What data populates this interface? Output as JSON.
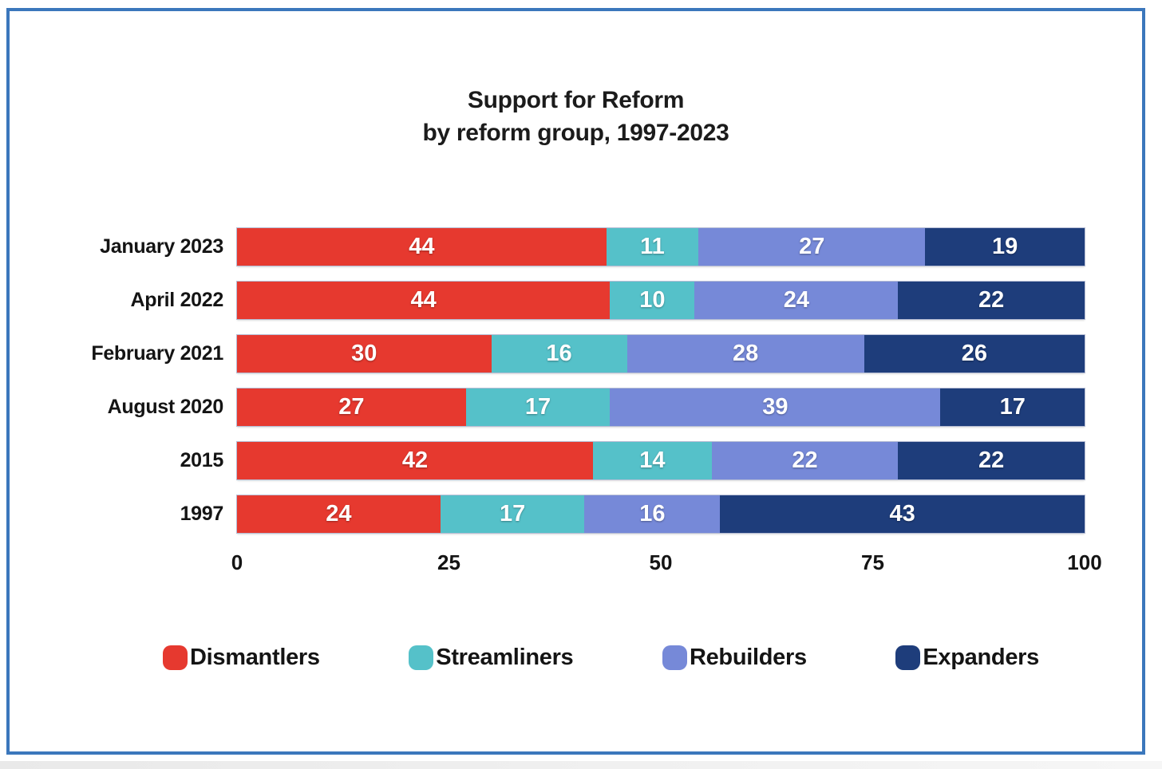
{
  "title": {
    "line1": "Support for Reform",
    "line2": "by reform group, 1997-2023"
  },
  "chart_data": {
    "type": "bar",
    "stacked": true,
    "orientation": "horizontal",
    "title": "Support for Reform by reform group, 1997-2023",
    "categories": [
      "January 2023",
      "April 2022",
      "February 2021",
      "August 2020",
      "2015",
      "1997"
    ],
    "series": [
      {
        "name": "Dismantlers",
        "color": "#e6392f",
        "values": [
          44,
          44,
          30,
          27,
          42,
          24
        ]
      },
      {
        "name": "Streamliners",
        "color": "#55c1c9",
        "values": [
          11,
          10,
          16,
          17,
          14,
          17
        ]
      },
      {
        "name": "Rebuilders",
        "color": "#7689d8",
        "values": [
          27,
          24,
          28,
          39,
          22,
          16
        ]
      },
      {
        "name": "Expanders",
        "color": "#1e3d7b",
        "values": [
          19,
          22,
          26,
          17,
          22,
          43
        ]
      }
    ],
    "x_ticks": [
      "0",
      "25",
      "50",
      "75",
      "100"
    ],
    "xlim": [
      0,
      100
    ],
    "xlabel": "",
    "ylabel": "",
    "grid": false,
    "legend_position": "bottom",
    "value_labels": "inside-white-bold"
  },
  "frame": {
    "border_color": "#3b77bc",
    "background": "#ffffff"
  }
}
